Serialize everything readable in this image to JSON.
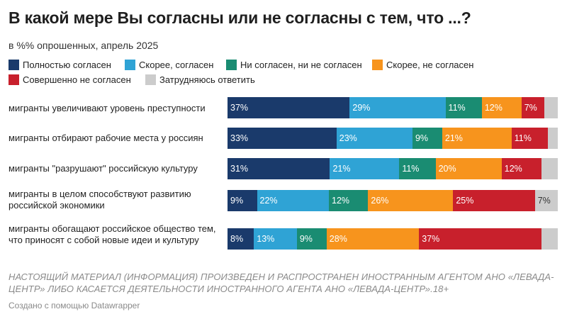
{
  "title": "В какой мере Вы согласны или не согласны с тем, что ...?",
  "subtitle": "в %% опрошенных, апрель 2025",
  "disclaimer": "НАСТОЯЩИЙ МАТЕРИАЛ (ИНФОРМАЦИЯ) ПРОИЗВЕДЕН И РАСПРОСТРАНЕН ИНОСТРАННЫМ АГЕНТОМ АНО «ЛЕВАДА-ЦЕНТР» ЛИБО КАСАЕТСЯ ДЕЯТЕЛЬНОСТИ ИНОСТРАННОГО АГЕНТА АНО «ЛЕВАДА-ЦЕНТР».18+",
  "credit": "Создано с помощью Datawrapper",
  "chart_data": {
    "type": "bar",
    "stacked": true,
    "orientation": "horizontal",
    "title": "В какой мере Вы согласны или не согласны с тем, что ...?",
    "subtitle": "в %% опрошенных, апрель 2025",
    "legend_position": "top",
    "grid": false,
    "xlim": [
      0,
      100
    ],
    "categories": [
      "мигранты увеличивают уровень преступности",
      "мигранты отбирают рабочие места у россиян",
      "мигранты \"разрушают\" российскую культуру",
      "мигранты в целом способствуют развитию российской экономики",
      "мигранты обогащают российское общество тем, что приносят с собой новые идеи и культуру"
    ],
    "series": [
      {
        "name": "Полностью согласен",
        "color": "#1a3a6b",
        "label_color": "#ffffff",
        "values": [
          37,
          33,
          31,
          9,
          8
        ]
      },
      {
        "name": "Скорее, согласен",
        "color": "#2fa3d5",
        "label_color": "#ffffff",
        "values": [
          29,
          23,
          21,
          22,
          13
        ]
      },
      {
        "name": "Ни согласен, ни не согласен",
        "color": "#1a8c72",
        "label_color": "#ffffff",
        "values": [
          11,
          9,
          11,
          12,
          9
        ]
      },
      {
        "name": "Скорее, не согласен",
        "color": "#f7941d",
        "label_color": "#ffffff",
        "values": [
          12,
          21,
          20,
          26,
          28
        ]
      },
      {
        "name": "Совершенно не согласен",
        "color": "#c8202c",
        "label_color": "#ffffff",
        "values": [
          7,
          11,
          12,
          25,
          37
        ]
      },
      {
        "name": "Затрудняюсь ответить",
        "color": "#cccccc",
        "label_color": "#333333",
        "values": [
          4,
          3,
          5,
          7,
          5
        ]
      }
    ],
    "value_labels": [
      [
        "37%",
        "29%",
        "11%",
        "12%",
        "7%",
        ""
      ],
      [
        "33%",
        "23%",
        "9%",
        "21%",
        "11%",
        ""
      ],
      [
        "31%",
        "21%",
        "11%",
        "20%",
        "12%",
        ""
      ],
      [
        "9%",
        "22%",
        "12%",
        "26%",
        "25%",
        "7%"
      ],
      [
        "8%",
        "13%",
        "9%",
        "28%",
        "37%",
        ""
      ]
    ]
  }
}
